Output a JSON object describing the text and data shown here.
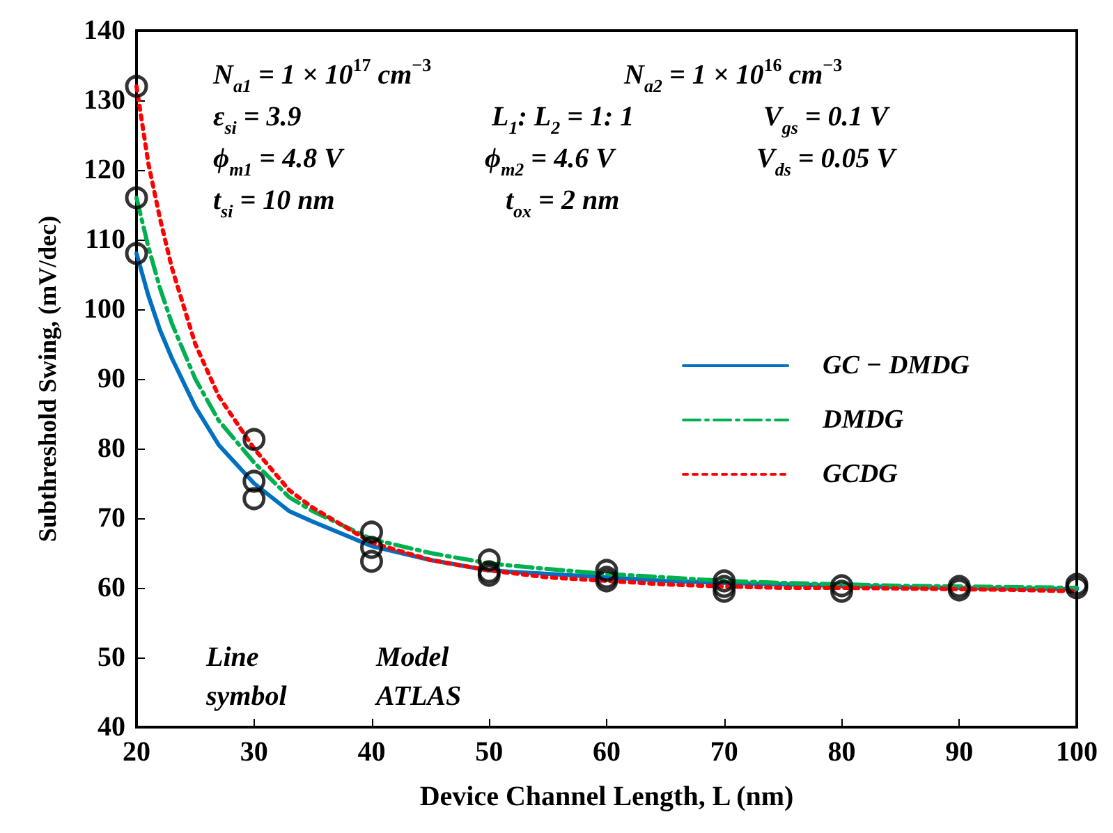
{
  "chart_data": {
    "type": "line",
    "xlabel": "Device Channel Length, L (nm)",
    "ylabel": "Subthreshold Swing, (mV/dec)",
    "xlim": [
      20,
      100
    ],
    "xticks": [
      20,
      30,
      40,
      50,
      60,
      70,
      80,
      90,
      100
    ],
    "ylim": [
      40,
      140
    ],
    "yticks": [
      40,
      50,
      60,
      70,
      80,
      90,
      100,
      110,
      120,
      130,
      140
    ],
    "grid": false,
    "legend": "right",
    "series": [
      {
        "name": "GC − DMDG",
        "color": "#0070c0",
        "line_style": "solid",
        "x": [
          20,
          21,
          22,
          23,
          25,
          27,
          30,
          33,
          35,
          40,
          45,
          50,
          55,
          60,
          65,
          70,
          75,
          80,
          85,
          90,
          95,
          100
        ],
        "values": [
          108,
          102,
          97,
          93,
          86,
          80.5,
          75,
          71,
          69.5,
          66,
          64,
          62.5,
          62,
          61.5,
          61,
          60.7,
          60.5,
          60.3,
          60.1,
          60,
          59.9,
          59.8
        ]
      },
      {
        "name": "DMDG",
        "color": "#00b050",
        "line_style": "dashdot",
        "x": [
          20,
          21,
          22,
          23,
          25,
          27,
          30,
          33,
          35,
          40,
          45,
          50,
          55,
          60,
          65,
          70,
          75,
          80,
          85,
          90,
          95,
          100
        ],
        "values": [
          116,
          109,
          103,
          98,
          90,
          84,
          78,
          73,
          71,
          67,
          65,
          63.5,
          62.7,
          62,
          61.5,
          61,
          60.7,
          60.5,
          60.3,
          60.2,
          60.1,
          60
        ]
      },
      {
        "name": "GCDG",
        "color": "#ff0000",
        "line_style": "dotted",
        "x": [
          20,
          21,
          22,
          23,
          25,
          27,
          30,
          33,
          35,
          40,
          45,
          50,
          55,
          60,
          65,
          70,
          75,
          80,
          85,
          90,
          95,
          100
        ],
        "values": [
          132,
          121,
          113,
          106,
          95,
          87.5,
          80,
          74,
          71.5,
          66.5,
          64,
          62.5,
          61.5,
          61,
          60.5,
          60.2,
          60,
          60,
          59.9,
          59.8,
          59.7,
          59.5
        ]
      },
      {
        "type": "scatter",
        "color": "#000000",
        "marker": "circle",
        "x": [
          20,
          20,
          20,
          30,
          30,
          30,
          40,
          40,
          40,
          50,
          50,
          50,
          60,
          60,
          60,
          70,
          70,
          70,
          80,
          80,
          90,
          90,
          100,
          100
        ],
        "values": [
          132,
          116,
          108,
          81.3,
          75.3,
          72.8,
          68,
          65.8,
          63.8,
          64,
          62.3,
          61.8,
          62.5,
          61.5,
          61,
          61,
          60.2,
          59.5,
          60.3,
          59.5,
          60.2,
          59.7,
          60.5,
          60
        ]
      }
    ],
    "annotations": [
      "N$_{a1}$ = 1 × 10$^{17}$ cm$^{−3}$",
      "N$_{a2}$ = 1 × 10$^{16}$ cm$^{−3}$",
      "ε$_{si}$ = 3.9",
      "L$_{1}$: L$_{2}$ = 1: 1",
      "V$_{gs}$ = 0.1 V",
      "ϕ$_{m1}$ = 4.8 V",
      "ϕ$_{m2}$ = 4.6 V",
      "V$_{ds}$ = 0.05 V",
      "t$_{si}$ = 10 nm",
      "t$_{ox}$ = 2 nm",
      "Line\nsymbol",
      "Model\nATLAS"
    ]
  }
}
